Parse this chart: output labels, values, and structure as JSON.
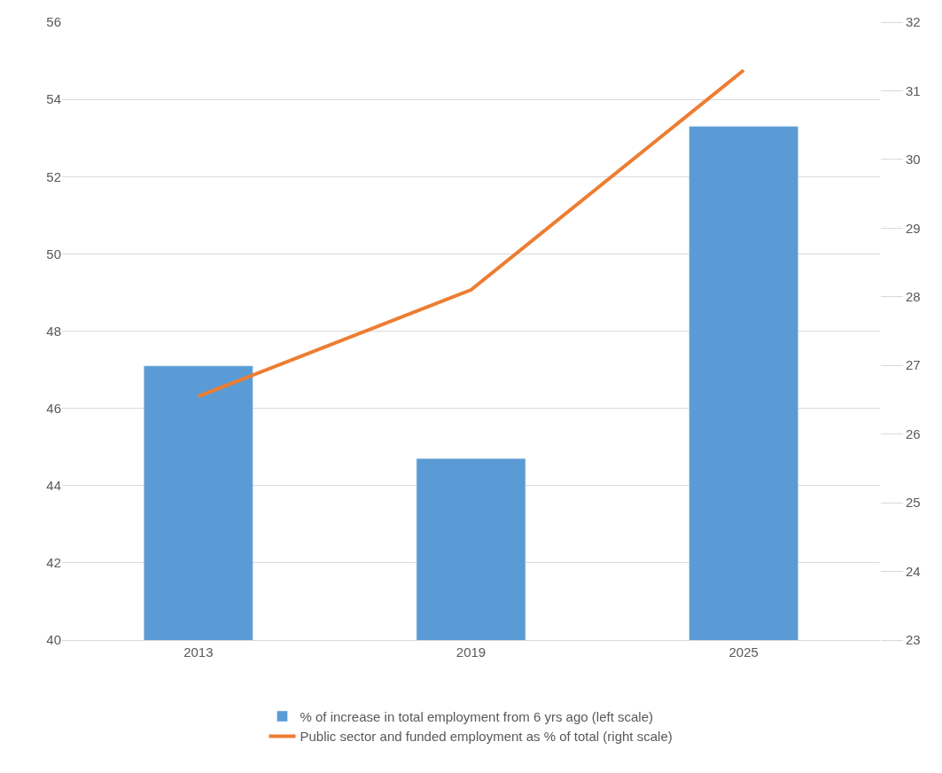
{
  "chart_data": {
    "type": "bar",
    "categories": [
      "2013",
      "2019",
      "2025"
    ],
    "series": [
      {
        "name": "% of increase in total employment from 6 yrs ago (left scale)",
        "color": "#5b9bd5",
        "values": [
          47.1,
          44.7,
          53.3
        ]
      },
      {
        "name": "Public sector and funded employment as % of total (right scale)",
        "type": "line",
        "axis": "y2",
        "color": "#ed7d31",
        "values": [
          26.55,
          28.1,
          31.3
        ]
      }
    ],
    "ylim": [
      40,
      56
    ],
    "yticks": [
      40,
      42,
      44,
      46,
      48,
      50,
      52,
      54,
      56
    ],
    "y2lim": [
      23,
      32
    ],
    "y2ticks": [
      23,
      24,
      25,
      26,
      27,
      28,
      29,
      30,
      31,
      32
    ],
    "grid": "y",
    "legend": "bottom",
    "marker": "none"
  }
}
